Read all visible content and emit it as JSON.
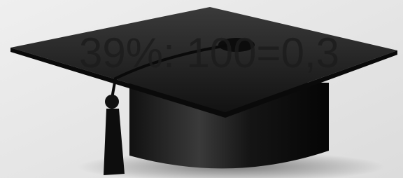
{
  "slide": {
    "text": "39%: 100=0,3"
  }
}
